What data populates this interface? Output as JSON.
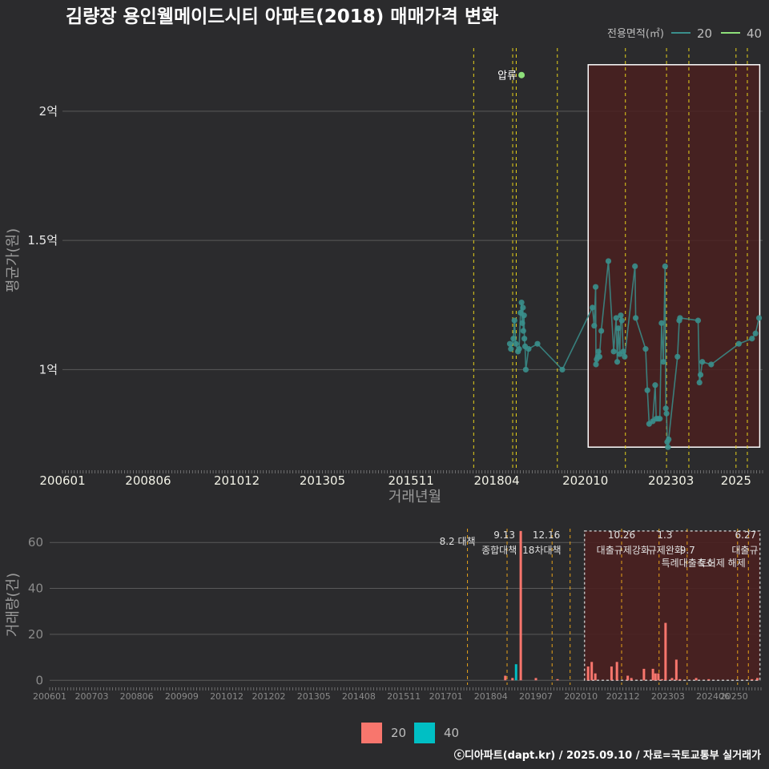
{
  "title": "김량장 용인웰메이드시티 아파트(2018) 매매가격 변화",
  "legend_top": {
    "title": "전용면적(㎡)",
    "items": [
      {
        "label": "20",
        "color": "#3a8f8c"
      },
      {
        "label": "40",
        "color": "#8ee07a"
      }
    ]
  },
  "legend_bottom": {
    "items": [
      {
        "label": "20",
        "color": "#f8766d"
      },
      {
        "label": "40",
        "color": "#00bfc4"
      }
    ]
  },
  "footer": "ⓒ디아파트(dapt.kr) / 2025.09.10 / 자료=국토교통부 실거래가",
  "colors": {
    "background": "#2b2b2d",
    "grid": "#5a5a5a",
    "shade": "#4a2020",
    "policy_line": "#e6d21a",
    "policy_line_bottom": "#e6a21a",
    "series20": "#3a8f8c",
    "series40": "#8ee07a",
    "bar20": "#f8766d",
    "bar40": "#00bfc4"
  },
  "chart_data": [
    {
      "type": "scatter",
      "name": "price",
      "title": "김량장 용인웰메이드시티 아파트(2018) 매매가격 변화",
      "xlabel": "거래년월",
      "ylabel": "평균가(원)",
      "x_ticks": [
        "200601",
        "200806",
        "201012",
        "201305",
        "201511",
        "201804",
        "202010",
        "202303",
        "2025"
      ],
      "y_ticks": [
        {
          "value": 1.0,
          "label": "1억"
        },
        {
          "value": 1.5,
          "label": "1.5억"
        },
        {
          "value": 2.0,
          "label": "2억"
        }
      ],
      "x_range": [
        2006.0,
        2025.75
      ],
      "ylim": [
        0.62,
        2.26
      ],
      "highlight_x_range": [
        2020.83,
        2025.67
      ],
      "policy_lines_x": [
        2017.6,
        2018.7,
        2018.8,
        2019.96,
        2021.88,
        2023.04,
        2023.67,
        2025.0,
        2025.32
      ],
      "annotation": {
        "label": "압류",
        "x": 2018.95,
        "y": 2.14,
        "series": "40"
      },
      "series": [
        {
          "name": "20",
          "points": [
            [
              2018.62,
              1.1
            ],
            [
              2018.65,
              1.08
            ],
            [
              2018.72,
              1.12
            ],
            [
              2018.75,
              1.19
            ],
            [
              2018.79,
              1.1
            ],
            [
              2018.85,
              1.07
            ],
            [
              2018.88,
              1.08
            ],
            [
              2018.92,
              1.22
            ],
            [
              2018.95,
              1.26
            ],
            [
              2018.97,
              1.18
            ],
            [
              2018.99,
              1.24
            ],
            [
              2019.0,
              1.15
            ],
            [
              2019.02,
              1.21
            ],
            [
              2019.03,
              1.12
            ],
            [
              2019.05,
              1.09
            ],
            [
              2019.07,
              1.0
            ],
            [
              2019.15,
              1.08
            ],
            [
              2019.4,
              1.1
            ],
            [
              2020.1,
              1.0
            ],
            [
              2020.95,
              1.24
            ],
            [
              2021.0,
              1.17
            ],
            [
              2021.04,
              1.32
            ],
            [
              2021.05,
              1.02
            ],
            [
              2021.07,
              1.04
            ],
            [
              2021.1,
              1.05
            ],
            [
              2021.12,
              1.07
            ],
            [
              2021.15,
              1.05
            ],
            [
              2021.2,
              1.15
            ],
            [
              2021.4,
              1.42
            ],
            [
              2021.55,
              1.07
            ],
            [
              2021.62,
              1.2
            ],
            [
              2021.65,
              1.03
            ],
            [
              2021.68,
              1.16
            ],
            [
              2021.72,
              1.06
            ],
            [
              2021.75,
              1.21
            ],
            [
              2021.78,
              1.19
            ],
            [
              2021.82,
              1.07
            ],
            [
              2021.86,
              1.05
            ],
            [
              2022.15,
              1.4
            ],
            [
              2022.17,
              1.2
            ],
            [
              2022.45,
              1.08
            ],
            [
              2022.5,
              0.92
            ],
            [
              2022.55,
              0.79
            ],
            [
              2022.65,
              0.8
            ],
            [
              2022.72,
              0.94
            ],
            [
              2022.75,
              0.81
            ],
            [
              2022.8,
              0.81
            ],
            [
              2022.85,
              0.81
            ],
            [
              2022.9,
              1.18
            ],
            [
              2022.95,
              1.03
            ],
            [
              2023.0,
              1.4
            ],
            [
              2023.02,
              0.85
            ],
            [
              2023.04,
              0.83
            ],
            [
              2023.06,
              0.72
            ],
            [
              2023.08,
              0.7
            ],
            [
              2023.1,
              0.73
            ],
            [
              2023.35,
              1.05
            ],
            [
              2023.4,
              1.19
            ],
            [
              2023.42,
              1.2
            ],
            [
              2023.93,
              1.19
            ],
            [
              2023.97,
              0.95
            ],
            [
              2024.0,
              0.98
            ],
            [
              2024.05,
              1.03
            ],
            [
              2024.3,
              1.02
            ],
            [
              2025.08,
              1.1
            ],
            [
              2025.45,
              1.12
            ],
            [
              2025.55,
              1.14
            ],
            [
              2025.65,
              1.2
            ]
          ]
        },
        {
          "name": "40",
          "points": [
            [
              2018.95,
              2.14
            ]
          ]
        }
      ]
    },
    {
      "type": "bar",
      "name": "volume",
      "ylabel": "거래량(건)",
      "x_ticks": [
        "200601",
        "200703",
        "200806",
        "200909",
        "201012",
        "201202",
        "201305",
        "201408",
        "201511",
        "201701",
        "201804",
        "201907",
        "202010",
        "202112",
        "202303",
        "202406",
        "20250"
      ],
      "y_ticks": [
        0,
        20,
        40,
        60
      ],
      "x_range": [
        2006.0,
        2025.75
      ],
      "ylim": [
        -2,
        66
      ],
      "highlight_x_range": [
        2020.85,
        2025.72
      ],
      "policy_lines": [
        {
          "x": 2017.6,
          "label": "8.2 대책"
        },
        {
          "x": 2018.7,
          "label": "9.13"
        },
        {
          "x": 2018.75,
          "label": "종합대책"
        },
        {
          "x": 2019.95,
          "label": "12.16"
        },
        {
          "x": 2019.98,
          "label": "18차대책"
        },
        {
          "x": 2020.45,
          "label": ""
        },
        {
          "x": 2021.88,
          "label": "10.26"
        },
        {
          "x": 2021.92,
          "label": "대출규제강화"
        },
        {
          "x": 2022.92,
          "label": ""
        },
        {
          "x": 2023.08,
          "label": "1.3"
        },
        {
          "x": 2023.1,
          "label": "규제완화"
        },
        {
          "x": 2023.7,
          "label": "9.7"
        },
        {
          "x": 2023.72,
          "label": "특례대출축소"
        },
        {
          "x": 2025.1,
          "label": "토허제 해제"
        },
        {
          "x": 2025.4,
          "label": "6.27"
        },
        {
          "x": 2025.45,
          "label": "대출규"
        }
      ],
      "series": [
        {
          "name": "20",
          "points": [
            [
              2018.65,
              2
            ],
            [
              2018.85,
              1
            ],
            [
              2019.08,
              65
            ],
            [
              2019.5,
              1
            ],
            [
              2020.1,
              0.5
            ],
            [
              2020.95,
              6
            ],
            [
              2021.05,
              8
            ],
            [
              2021.15,
              3
            ],
            [
              2021.6,
              6
            ],
            [
              2021.75,
              8
            ],
            [
              2022.05,
              2
            ],
            [
              2022.15,
              1
            ],
            [
              2022.5,
              5
            ],
            [
              2022.75,
              5
            ],
            [
              2022.82,
              3
            ],
            [
              2022.9,
              3
            ],
            [
              2023.0,
              0.5
            ],
            [
              2023.1,
              25
            ],
            [
              2023.28,
              1
            ],
            [
              2023.4,
              9
            ],
            [
              2023.5,
              0.5
            ],
            [
              2023.95,
              1
            ],
            [
              2024.3,
              0.5
            ],
            [
              2025.5,
              0.5
            ],
            [
              2025.65,
              1
            ]
          ]
        },
        {
          "name": "40",
          "points": [
            [
              2018.95,
              7
            ]
          ]
        }
      ]
    }
  ]
}
